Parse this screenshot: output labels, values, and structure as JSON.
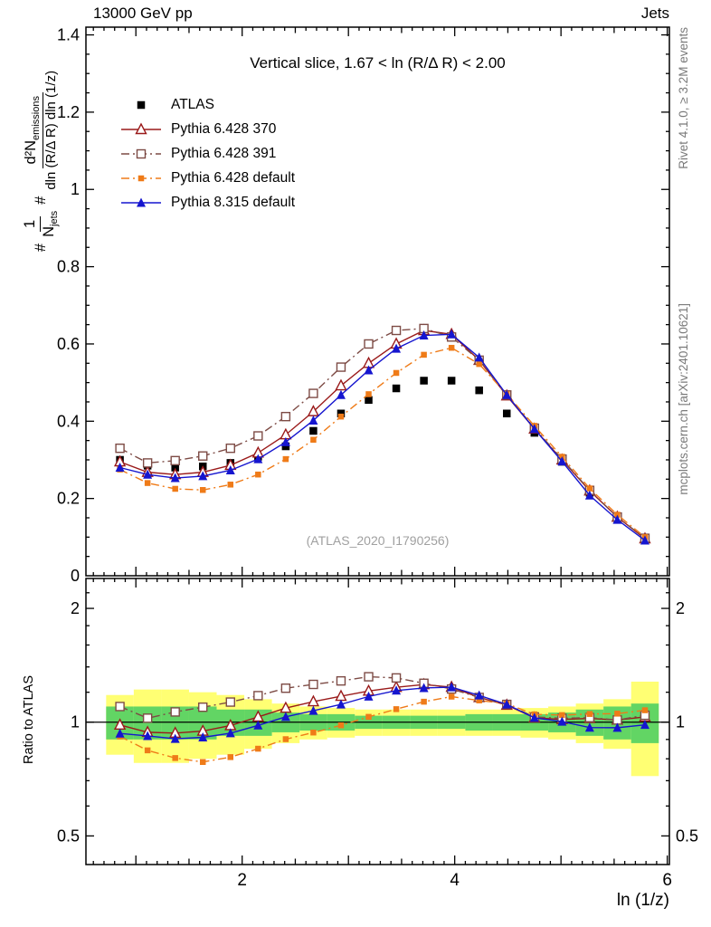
{
  "header": {
    "left": "13000 GeV pp",
    "right": "Jets"
  },
  "side_notes": {
    "top": "Rivet 4.1.0, ≥ 3.2M events",
    "bottom": "mcplots.cern.ch [arXiv:2401.10621]"
  },
  "ylabel": {
    "hash1": "#",
    "num1": "1",
    "den1_main": "N",
    "den1_sub": "jets",
    "hash2": "#",
    "num2_main": "d²N",
    "num2_sub": "emissions",
    "den2": "dln (R/Δ R) dln (1/z)"
  },
  "chart_data": {
    "type": "line",
    "title": "Vertical slice, 1.67 < ln (R/Δ R) < 2.00",
    "watermark": "(ATLAS_2020_I1790256)",
    "x": [
      0.85,
      1.11,
      1.37,
      1.63,
      1.89,
      2.15,
      2.41,
      2.67,
      2.93,
      3.19,
      3.45,
      3.71,
      3.97,
      4.23,
      4.49,
      4.75,
      5.01,
      5.27,
      5.53,
      5.79
    ],
    "x_axis": {
      "label": "ln (1/z)",
      "min": 0.53,
      "max": 6.02,
      "major_ticks": [
        2,
        4,
        6
      ]
    },
    "main_axis": {
      "min": 0,
      "max": 1.42,
      "ticks": [
        0,
        0.2,
        0.4,
        0.6,
        0.8,
        1,
        1.2,
        1.4
      ],
      "labels": [
        "0",
        "0.2",
        "0.4",
        "0.6",
        "0.8",
        "1",
        "1.2",
        "1.4"
      ]
    },
    "ratio_axis": {
      "label": "Ratio to ATLAS",
      "scale": "log",
      "min": 0.42,
      "max": 2.4,
      "ticks": [
        0.5,
        1,
        2
      ],
      "labels": [
        "0.5",
        "1",
        "2"
      ],
      "minor_ticks": [
        0.6,
        0.7,
        0.8,
        0.9,
        1.2,
        1.4,
        1.6,
        1.8,
        2.2
      ]
    },
    "series": [
      {
        "name": "ATLAS",
        "color": "#000000",
        "marker": "square-filled",
        "line": "none",
        "values": [
          0.3,
          0.285,
          0.28,
          0.283,
          0.292,
          0.308,
          0.335,
          0.375,
          0.42,
          0.455,
          0.485,
          0.505,
          0.505,
          0.48,
          0.42,
          0.37,
          0.295,
          0.215,
          0.15,
          0.093
        ]
      },
      {
        "name": "Pythia 6.428 370",
        "color": "#9a1a1a",
        "marker": "triangle-open",
        "line": "solid",
        "values": [
          0.295,
          0.268,
          0.262,
          0.268,
          0.286,
          0.318,
          0.365,
          0.425,
          0.492,
          0.55,
          0.6,
          0.635,
          0.625,
          0.558,
          0.466,
          0.38,
          0.3,
          0.22,
          0.152,
          0.096
        ]
      },
      {
        "name": "Pythia 6.428 391",
        "color": "#7d4b45",
        "marker": "square-open",
        "line": "dashdot",
        "values": [
          0.33,
          0.292,
          0.298,
          0.31,
          0.33,
          0.362,
          0.412,
          0.472,
          0.54,
          0.6,
          0.635,
          0.64,
          0.618,
          0.558,
          0.468,
          0.382,
          0.302,
          0.221,
          0.152,
          0.097
        ]
      },
      {
        "name": "Pythia 6.428 default",
        "color": "#ef7b18",
        "marker": "square-filled-small",
        "line": "dashdot",
        "values": [
          0.275,
          0.24,
          0.225,
          0.222,
          0.236,
          0.262,
          0.302,
          0.352,
          0.412,
          0.47,
          0.525,
          0.572,
          0.59,
          0.548,
          0.47,
          0.388,
          0.308,
          0.226,
          0.158,
          0.1
        ]
      },
      {
        "name": "Pythia 8.315 default",
        "color": "#1515cf",
        "marker": "triangle-filled",
        "line": "solid",
        "values": [
          0.28,
          0.262,
          0.253,
          0.258,
          0.273,
          0.302,
          0.346,
          0.402,
          0.468,
          0.532,
          0.588,
          0.622,
          0.625,
          0.565,
          0.468,
          0.38,
          0.296,
          0.208,
          0.145,
          0.0915
        ]
      }
    ],
    "ratio_reference": "ATLAS",
    "bands": {
      "yellow": {
        "color": "#ffff73",
        "half_widths": [
          0.18,
          0.22,
          0.22,
          0.2,
          0.18,
          0.15,
          0.12,
          0.1,
          0.09,
          0.08,
          0.08,
          0.08,
          0.08,
          0.08,
          0.08,
          0.09,
          0.1,
          0.12,
          0.15,
          0.28
        ]
      },
      "green": {
        "color": "#62d564",
        "half_widths": [
          0.1,
          0.1,
          0.1,
          0.1,
          0.08,
          0.08,
          0.06,
          0.05,
          0.05,
          0.04,
          0.04,
          0.04,
          0.04,
          0.05,
          0.05,
          0.05,
          0.06,
          0.08,
          0.1,
          0.12
        ]
      }
    }
  }
}
